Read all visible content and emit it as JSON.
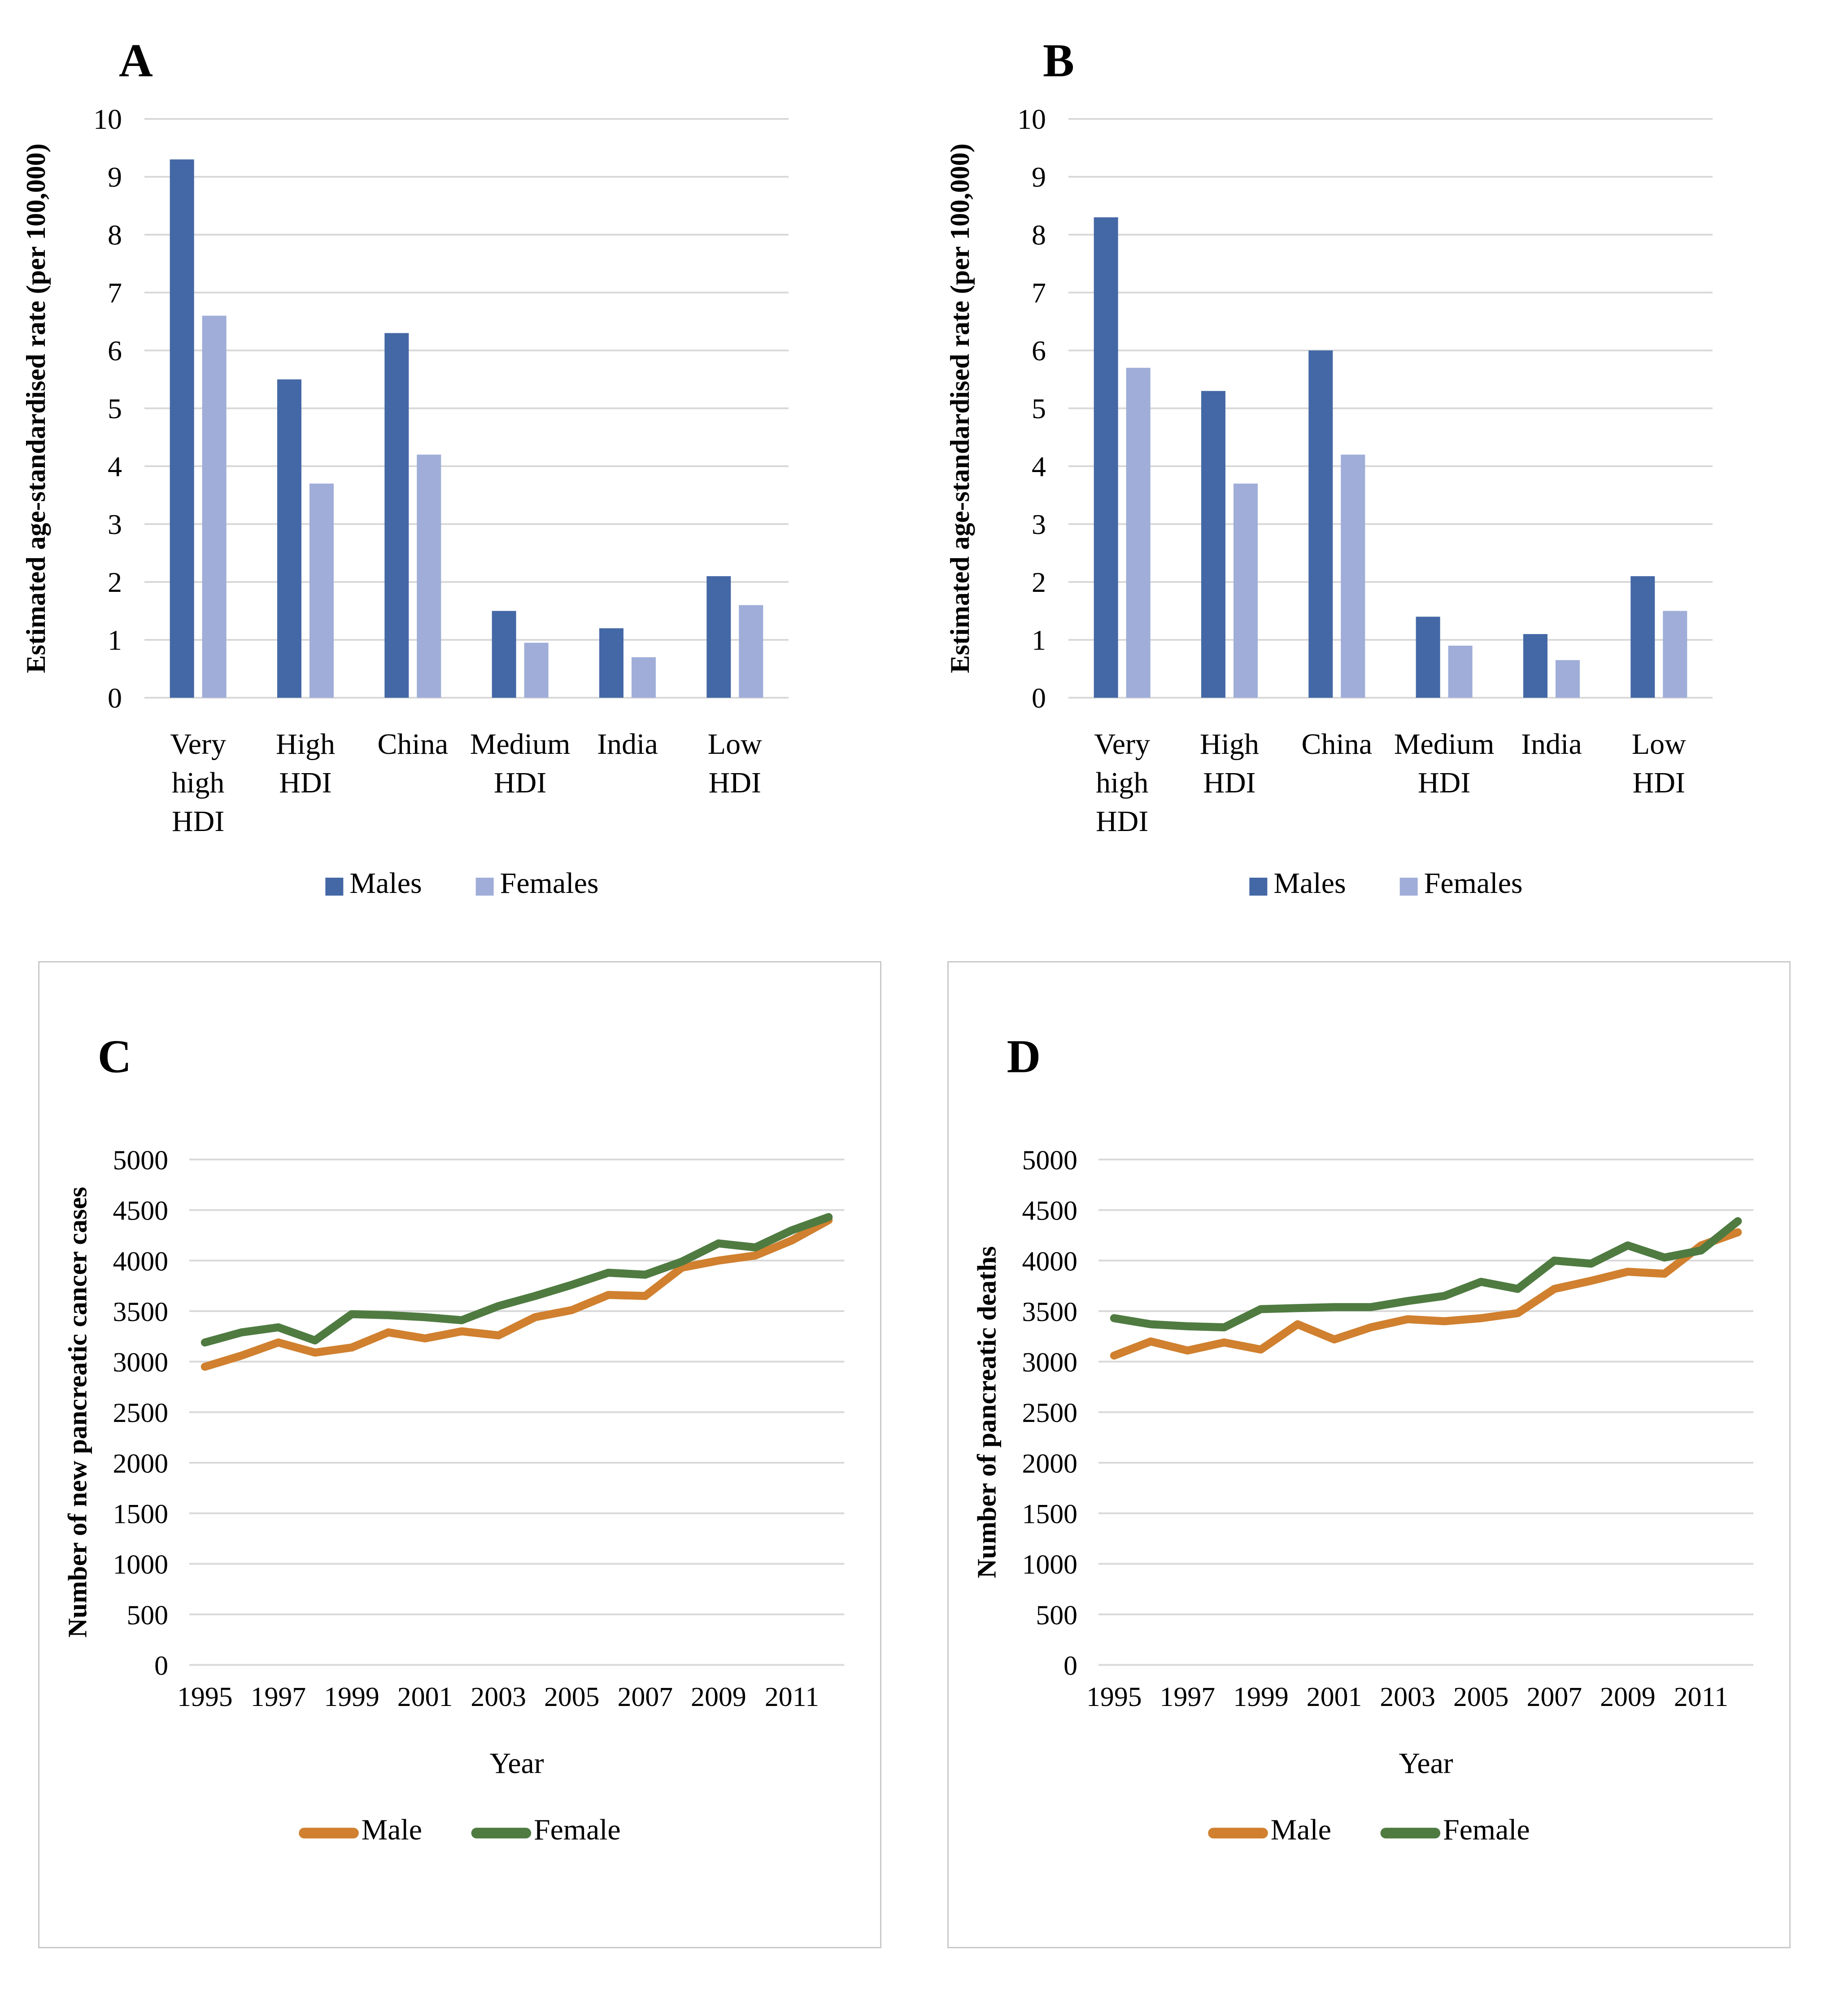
{
  "figure": {
    "description_colors": {
      "bar_male": "#4468A6",
      "bar_female": "#9FADD8",
      "line_male": "#D0802F",
      "line_female": "#4F7B41",
      "gridline": "#D9D9D9",
      "box_border": "#C9C9C9",
      "text": "#000000"
    }
  },
  "chart_data": [
    {
      "id": "A",
      "type": "bar",
      "panel_label": "A",
      "ylabel": "Estimated age-standardised rate (per 100,000)",
      "ylim": [
        0,
        10
      ],
      "ystep": 1,
      "grid": true,
      "legend_position": "bottom",
      "categories": [
        "Very high HDI",
        "High HDI",
        "China",
        "Medium HDI",
        "India",
        "Low HDI"
      ],
      "category_label_lines": [
        [
          "Very",
          "high",
          "HDI"
        ],
        [
          "High",
          "HDI"
        ],
        [
          "China"
        ],
        [
          "Medium",
          "HDI"
        ],
        [
          "India"
        ],
        [
          "Low",
          "HDI"
        ]
      ],
      "series": [
        {
          "name": "Males",
          "color": "#4468A6",
          "values": [
            9.3,
            5.5,
            6.3,
            1.5,
            1.2,
            2.1
          ]
        },
        {
          "name": "Females",
          "color": "#9FADD8",
          "values": [
            6.6,
            3.7,
            4.2,
            0.95,
            0.7,
            1.6
          ]
        }
      ]
    },
    {
      "id": "B",
      "type": "bar",
      "panel_label": "B",
      "ylabel": "Estimated age-standardised rate (per 100,000)",
      "ylim": [
        0,
        10
      ],
      "ystep": 1,
      "grid": true,
      "legend_position": "bottom",
      "categories": [
        "Very high HDI",
        "High HDI",
        "China",
        "Medium HDI",
        "India",
        "Low HDI"
      ],
      "category_label_lines": [
        [
          "Very",
          "high",
          "HDI"
        ],
        [
          "High",
          "HDI"
        ],
        [
          "China"
        ],
        [
          "Medium",
          "HDI"
        ],
        [
          "India"
        ],
        [
          "Low",
          "HDI"
        ]
      ],
      "series": [
        {
          "name": "Males",
          "color": "#4468A6",
          "values": [
            8.3,
            5.3,
            6.0,
            1.4,
            1.1,
            2.1
          ]
        },
        {
          "name": "Females",
          "color": "#9FADD8",
          "values": [
            5.7,
            3.7,
            4.2,
            0.9,
            0.65,
            1.5
          ]
        }
      ]
    },
    {
      "id": "C",
      "type": "line",
      "panel_label": "C",
      "ylabel": "Number of new pancreatic cancer cases",
      "xlabel": "Year",
      "ylim": [
        0,
        5000
      ],
      "ystep": 500,
      "grid": true,
      "legend_position": "bottom",
      "x": [
        1995,
        1996,
        1997,
        1998,
        1999,
        2000,
        2001,
        2002,
        2003,
        2004,
        2005,
        2006,
        2007,
        2008,
        2009,
        2010,
        2011,
        2012
      ],
      "xtick_labels": [
        "1995",
        "1997",
        "1999",
        "2001",
        "2003",
        "2005",
        "2007",
        "2009",
        "2011"
      ],
      "series": [
        {
          "name": "Male",
          "color": "#D0802F",
          "values": [
            2950,
            3060,
            3190,
            3090,
            3140,
            3290,
            3230,
            3300,
            3260,
            3440,
            3510,
            3660,
            3650,
            3930,
            4000,
            4050,
            4200,
            4400
          ]
        },
        {
          "name": "Female",
          "color": "#4F7B41",
          "values": [
            3190,
            3290,
            3340,
            3210,
            3470,
            3460,
            3440,
            3410,
            3550,
            3650,
            3760,
            3880,
            3860,
            3990,
            4170,
            4130,
            4300,
            4430
          ]
        }
      ]
    },
    {
      "id": "D",
      "type": "line",
      "panel_label": "D",
      "ylabel": "Number of pancreatic deaths",
      "xlabel": "Year",
      "ylim": [
        0,
        5000
      ],
      "ystep": 500,
      "grid": true,
      "legend_position": "bottom",
      "x": [
        1995,
        1996,
        1997,
        1998,
        1999,
        2000,
        2001,
        2002,
        2003,
        2004,
        2005,
        2006,
        2007,
        2008,
        2009,
        2010,
        2011,
        2012
      ],
      "xtick_labels": [
        "1995",
        "1997",
        "1999",
        "2001",
        "2003",
        "2005",
        "2007",
        "2009",
        "2011"
      ],
      "series": [
        {
          "name": "Male",
          "color": "#D0802F",
          "values": [
            3060,
            3200,
            3110,
            3190,
            3120,
            3370,
            3220,
            3340,
            3420,
            3400,
            3430,
            3480,
            3720,
            3800,
            3890,
            3870,
            4150,
            4280
          ]
        },
        {
          "name": "Female",
          "color": "#4F7B41",
          "values": [
            3430,
            3370,
            3350,
            3340,
            3520,
            3530,
            3540,
            3540,
            3600,
            3650,
            3790,
            3720,
            4000,
            3970,
            4150,
            4030,
            4100,
            4390
          ]
        }
      ]
    }
  ]
}
